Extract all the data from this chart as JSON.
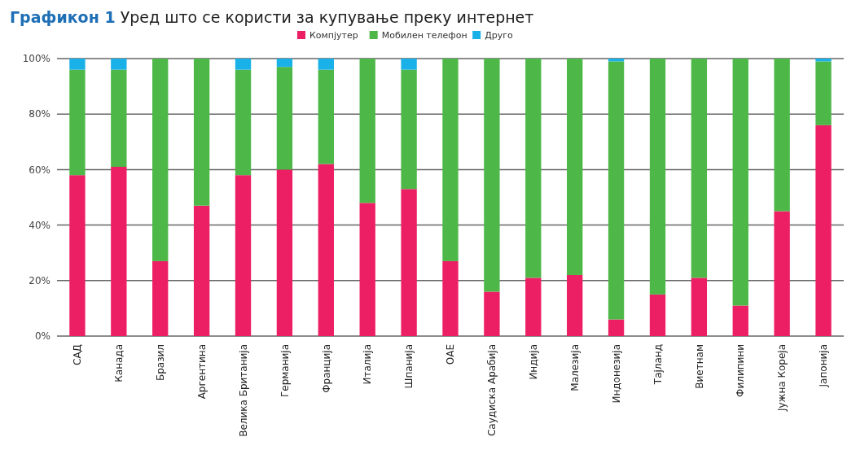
{
  "chart_data": {
    "type": "bar",
    "title": "Графикон 1 Уред што се користи за купување преку интернет",
    "stacked": true,
    "categories": [
      "САД",
      "Канада",
      "Бразил",
      "Аргентина",
      "Велика Британија",
      "Германија",
      "Франција",
      "Италија",
      "Шпанија",
      "ОАЕ",
      "Саудиска Арабија",
      "Индија",
      "Малезија",
      "Индонезија",
      "Тајланд",
      "Виетнам",
      "Филипини",
      "Јужна Кореја",
      "Јапонија"
    ],
    "series": [
      {
        "name": "Компјутер",
        "color": "#ec1f65",
        "values": [
          58,
          61,
          27,
          47,
          58,
          60,
          62,
          48,
          53,
          27,
          16,
          21,
          22,
          6,
          15,
          21,
          11,
          45,
          76
        ]
      },
      {
        "name": "Мобилен телефон",
        "color": "#4db848",
        "values": [
          38,
          35,
          73,
          53,
          38,
          37,
          34,
          52,
          43,
          73,
          84,
          79,
          78,
          93,
          85,
          79,
          89,
          55,
          23
        ]
      },
      {
        "name": "Друго",
        "color": "#1ab0e8",
        "values": [
          4,
          4,
          0,
          0,
          4,
          3,
          4,
          0,
          4,
          0,
          0,
          0,
          0,
          1,
          0,
          0,
          0,
          0,
          1
        ]
      }
    ],
    "ylim": [
      0,
      100
    ],
    "yticks": [
      {
        "value": 0,
        "label": "0%"
      },
      {
        "value": 20,
        "label": "20%"
      },
      {
        "value": 40,
        "label": "40%"
      },
      {
        "value": 60,
        "label": "60%"
      },
      {
        "value": 80,
        "label": "80%"
      },
      {
        "value": 100,
        "label": "100%"
      }
    ],
    "grid": "y",
    "legend": "top"
  }
}
